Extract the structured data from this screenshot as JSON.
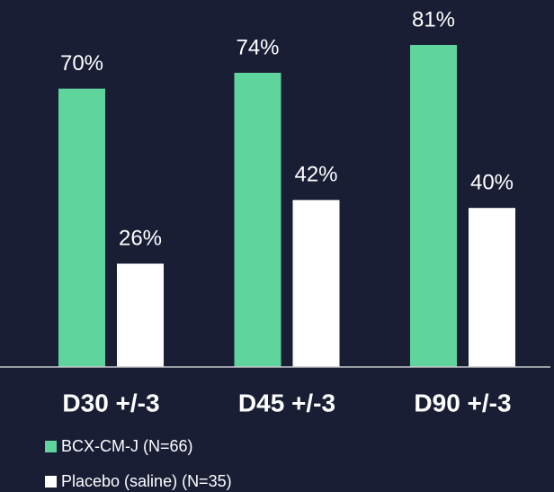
{
  "chart_data": {
    "type": "bar",
    "categories": [
      "D30 +/-3",
      "D45 +/-3",
      "D90 +/-3"
    ],
    "series": [
      {
        "name": "BCX-CM-J (N=66)",
        "color": "#5fd49c",
        "values": [
          70,
          74,
          81
        ],
        "value_labels": [
          "70%",
          "74%",
          "81%"
        ]
      },
      {
        "name": "Placebo (saline) (N=35)",
        "color": "#ffffff",
        "values": [
          26,
          42,
          40
        ],
        "value_labels": [
          "26%",
          "42%",
          "40%"
        ]
      }
    ]
  }
}
